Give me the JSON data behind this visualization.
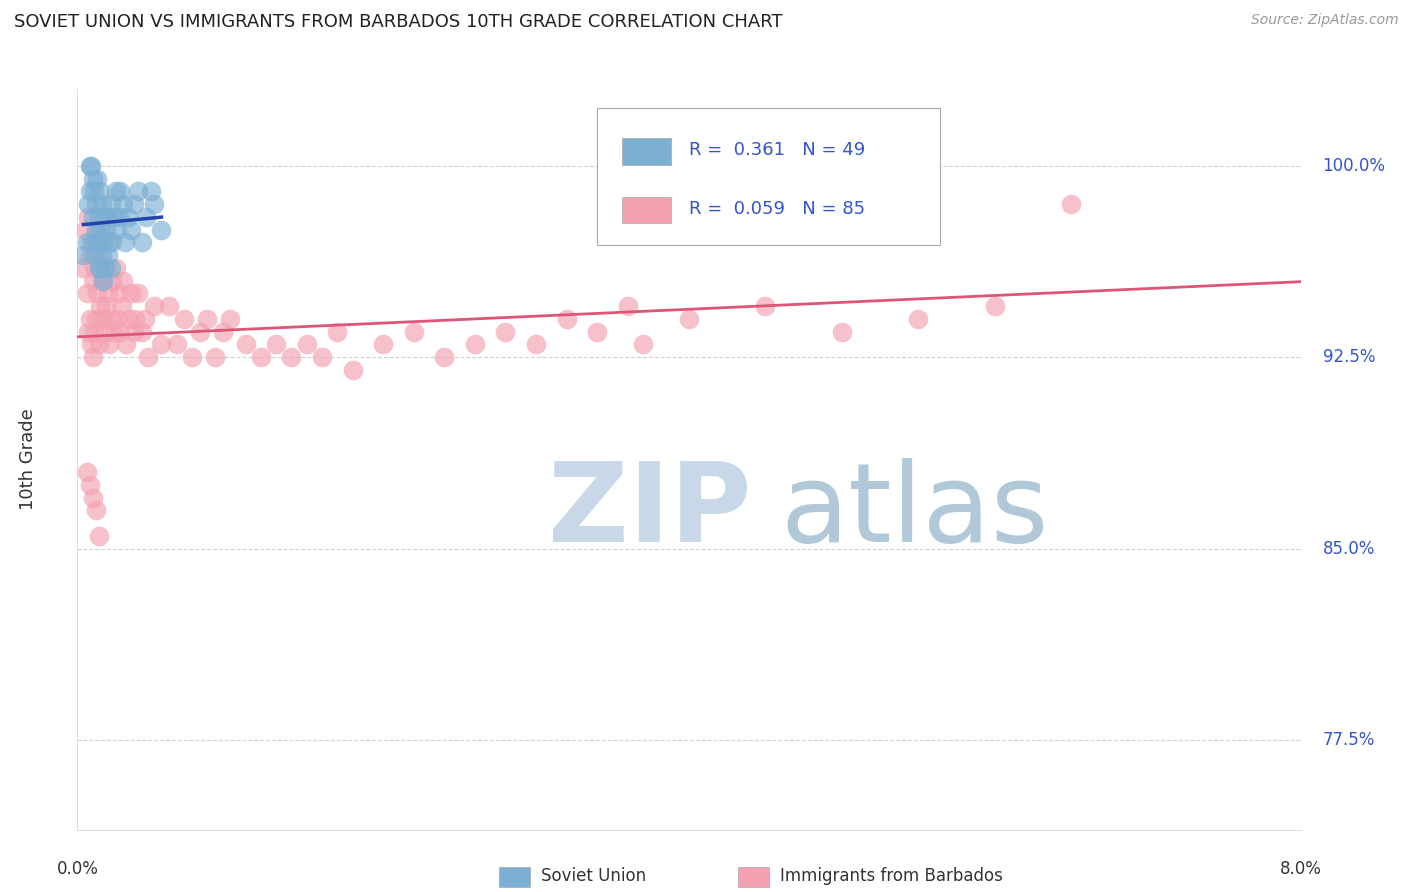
{
  "title": "SOVIET UNION VS IMMIGRANTS FROM BARBADOS 10TH GRADE CORRELATION CHART",
  "source": "Source: ZipAtlas.com",
  "ylabel": "10th Grade",
  "xlim": [
    0.0,
    8.0
  ],
  "ylim": [
    74.0,
    103.0
  ],
  "yticks": [
    77.5,
    85.0,
    92.5,
    100.0
  ],
  "ytick_labels": [
    "77.5%",
    "85.0%",
    "92.5%",
    "100.0%"
  ],
  "blue_R": 0.361,
  "blue_N": 49,
  "pink_R": 0.059,
  "pink_N": 85,
  "blue_label": "Soviet Union",
  "pink_label": "Immigrants from Barbados",
  "blue_color": "#7BAFD4",
  "pink_color": "#F4A0B0",
  "blue_line_color": "#2244AA",
  "pink_line_color": "#DD5577",
  "watermark_zip_color": "#C8D8E8",
  "watermark_atlas_color": "#B0C8D8",
  "blue_x": [
    0.04,
    0.06,
    0.07,
    0.08,
    0.08,
    0.09,
    0.1,
    0.1,
    0.1,
    0.11,
    0.11,
    0.12,
    0.12,
    0.13,
    0.13,
    0.14,
    0.14,
    0.15,
    0.15,
    0.15,
    0.16,
    0.16,
    0.17,
    0.17,
    0.18,
    0.18,
    0.19,
    0.2,
    0.2,
    0.21,
    0.22,
    0.22,
    0.23,
    0.24,
    0.25,
    0.26,
    0.27,
    0.28,
    0.3,
    0.31,
    0.33,
    0.35,
    0.37,
    0.4,
    0.42,
    0.45,
    0.48,
    0.5,
    0.55
  ],
  "blue_y": [
    96.5,
    97.0,
    98.5,
    99.0,
    100.0,
    100.0,
    99.5,
    98.0,
    97.0,
    99.0,
    96.5,
    98.5,
    97.5,
    99.5,
    97.0,
    98.0,
    96.0,
    99.0,
    97.5,
    96.0,
    98.5,
    96.5,
    97.0,
    95.5,
    98.0,
    96.0,
    97.5,
    98.0,
    96.5,
    97.0,
    98.5,
    96.0,
    97.0,
    98.0,
    99.0,
    97.5,
    98.0,
    99.0,
    98.5,
    97.0,
    98.0,
    97.5,
    98.5,
    99.0,
    97.0,
    98.0,
    99.0,
    98.5,
    97.5
  ],
  "pink_x": [
    0.04,
    0.05,
    0.06,
    0.07,
    0.07,
    0.08,
    0.08,
    0.09,
    0.09,
    0.1,
    0.1,
    0.11,
    0.11,
    0.12,
    0.12,
    0.13,
    0.14,
    0.14,
    0.15,
    0.15,
    0.16,
    0.17,
    0.18,
    0.18,
    0.19,
    0.2,
    0.21,
    0.22,
    0.23,
    0.24,
    0.25,
    0.26,
    0.27,
    0.28,
    0.29,
    0.3,
    0.32,
    0.34,
    0.35,
    0.37,
    0.38,
    0.4,
    0.42,
    0.44,
    0.46,
    0.5,
    0.55,
    0.6,
    0.65,
    0.7,
    0.75,
    0.8,
    0.85,
    0.9,
    0.95,
    1.0,
    1.1,
    1.2,
    1.3,
    1.4,
    1.5,
    1.6,
    1.7,
    1.8,
    2.0,
    2.2,
    2.4,
    2.6,
    2.8,
    3.0,
    3.2,
    3.4,
    3.6,
    3.7,
    4.0,
    4.5,
    5.0,
    5.5,
    6.0,
    6.5,
    0.06,
    0.08,
    0.1,
    0.12,
    0.14
  ],
  "pink_y": [
    96.0,
    97.5,
    95.0,
    98.0,
    93.5,
    96.5,
    94.0,
    97.0,
    93.0,
    95.5,
    92.5,
    96.0,
    93.5,
    97.5,
    94.0,
    95.0,
    96.5,
    93.0,
    97.0,
    94.5,
    95.5,
    94.0,
    96.0,
    93.5,
    94.5,
    95.0,
    93.0,
    94.0,
    95.5,
    93.5,
    96.0,
    94.0,
    95.0,
    93.5,
    94.5,
    95.5,
    93.0,
    94.0,
    95.0,
    93.5,
    94.0,
    95.0,
    93.5,
    94.0,
    92.5,
    94.5,
    93.0,
    94.5,
    93.0,
    94.0,
    92.5,
    93.5,
    94.0,
    92.5,
    93.5,
    94.0,
    93.0,
    92.5,
    93.0,
    92.5,
    93.0,
    92.5,
    93.5,
    92.0,
    93.0,
    93.5,
    92.5,
    93.0,
    93.5,
    93.0,
    94.0,
    93.5,
    94.5,
    93.0,
    94.0,
    94.5,
    93.5,
    94.0,
    94.5,
    98.5,
    88.0,
    87.5,
    87.0,
    86.5,
    85.5
  ]
}
